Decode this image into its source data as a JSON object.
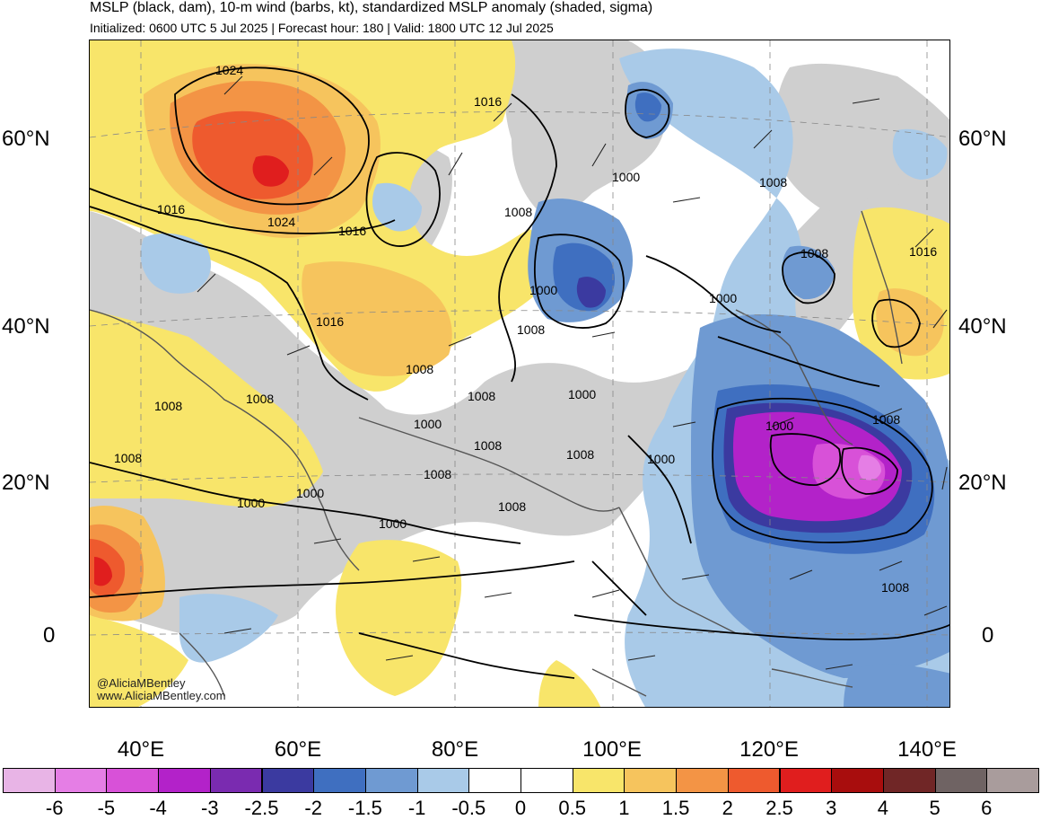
{
  "header": {
    "title": "MSLP (black, dam), 10-m wind (barbs, kt), standardized MSLP anomaly (shaded, sigma)",
    "subtitle": "Initialized: 0600 UTC 5 Jul 2025 | Forecast hour: 180 | Valid: 1800 UTC 12 Jul 2025"
  },
  "lat_labels": [
    "60°N",
    "40°N",
    "20°N",
    "0"
  ],
  "lon_labels": [
    "40°E",
    "60°E",
    "80°E",
    "100°E",
    "120°E",
    "140°E"
  ],
  "credit": {
    "handle": "@AliciaMBentley",
    "site": "www.AliciaMBentley.com"
  },
  "colorbar": {
    "ticks": [
      "-6",
      "-5",
      "-4",
      "-3",
      "-2.5",
      "-2",
      "-1.5",
      "-1",
      "-0.5",
      "0",
      "0.5",
      "1",
      "1.5",
      "2",
      "2.5",
      "3",
      "4",
      "5",
      "6"
    ],
    "colors": [
      "#e8b4e6",
      "#e57ee5",
      "#d851d8",
      "#b322c9",
      "#7a2bb0",
      "#3b3aa0",
      "#3f6fc0",
      "#6f9ad2",
      "#a9cae8",
      "#ffffff",
      "#ffffff",
      "#f8e56a",
      "#f6c45d",
      "#f39445",
      "#ee5a2e",
      "#e01e1e",
      "#a80d0d",
      "#702626",
      "#6f6363",
      "#a99c9c"
    ]
  },
  "isobar_labels": [
    "1024",
    "1024",
    "1016",
    "1016",
    "1016",
    "1016",
    "1016",
    "1008",
    "1008",
    "1008",
    "1008",
    "1008",
    "1008",
    "1008",
    "1008",
    "1008",
    "1008",
    "1008",
    "1008",
    "1008",
    "1008",
    "1008",
    "1000",
    "1000",
    "1000",
    "1000",
    "1000",
    "1000",
    "1000",
    "1000",
    "1000",
    "1000"
  ],
  "map_colors": {
    "land_gray": "#cfcfcf",
    "neg_light": "#a9cae8",
    "neg_mid": "#6f9ad2",
    "neg_dark": "#3f6fc0",
    "neg_deep": "#3b3aa0",
    "purple": "#b322c9",
    "magenta": "#d851d8",
    "pos_light": "#f8e56a",
    "pos_mid": "#f6c45d",
    "pos_orange": "#f39445",
    "pos_red": "#ee5a2e",
    "pos_deep": "#e01e1e",
    "coast": "#555555",
    "isobar": "#000000"
  }
}
